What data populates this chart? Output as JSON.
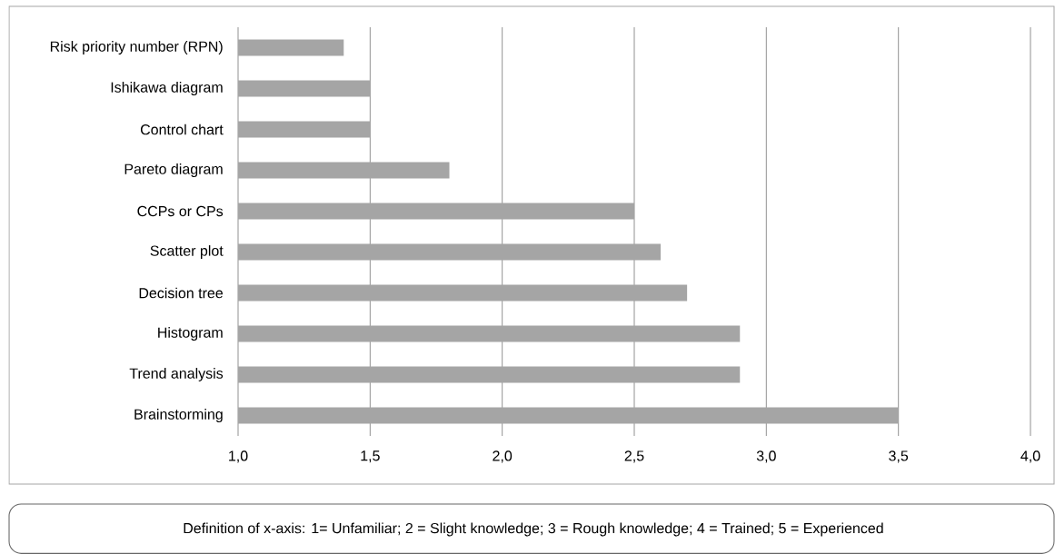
{
  "chart_data": {
    "type": "bar",
    "orientation": "horizontal",
    "categories": [
      "Risk priority number (RPN)",
      "Ishikawa diagram",
      "Control chart",
      "Pareto diagram",
      "CCPs or CPs",
      "Scatter plot",
      "Decision tree",
      "Histogram",
      "Trend analysis",
      "Brainstorming"
    ],
    "values": [
      1.4,
      1.5,
      1.5,
      1.8,
      2.5,
      2.6,
      2.7,
      2.9,
      2.9,
      3.5
    ],
    "color": "#a5a5a5",
    "xlim": [
      1,
      4
    ],
    "xticks": [
      {
        "value": 1,
        "label": "1,0"
      },
      {
        "value": 1.5,
        "label": "1,5"
      },
      {
        "value": 2,
        "label": "2,0"
      },
      {
        "value": 2.5,
        "label": "2,5"
      },
      {
        "value": 3,
        "label": "3,0"
      },
      {
        "value": 3.5,
        "label": "3,5"
      },
      {
        "value": 4,
        "label": "4,0"
      }
    ],
    "grid": "x",
    "annotations": [
      "Definition of x-axis: 1= Unfamiliar; 2 = Slight knowledge;  3 = Rough knowledge; 4 = Trained; 5 = Experienced"
    ]
  }
}
